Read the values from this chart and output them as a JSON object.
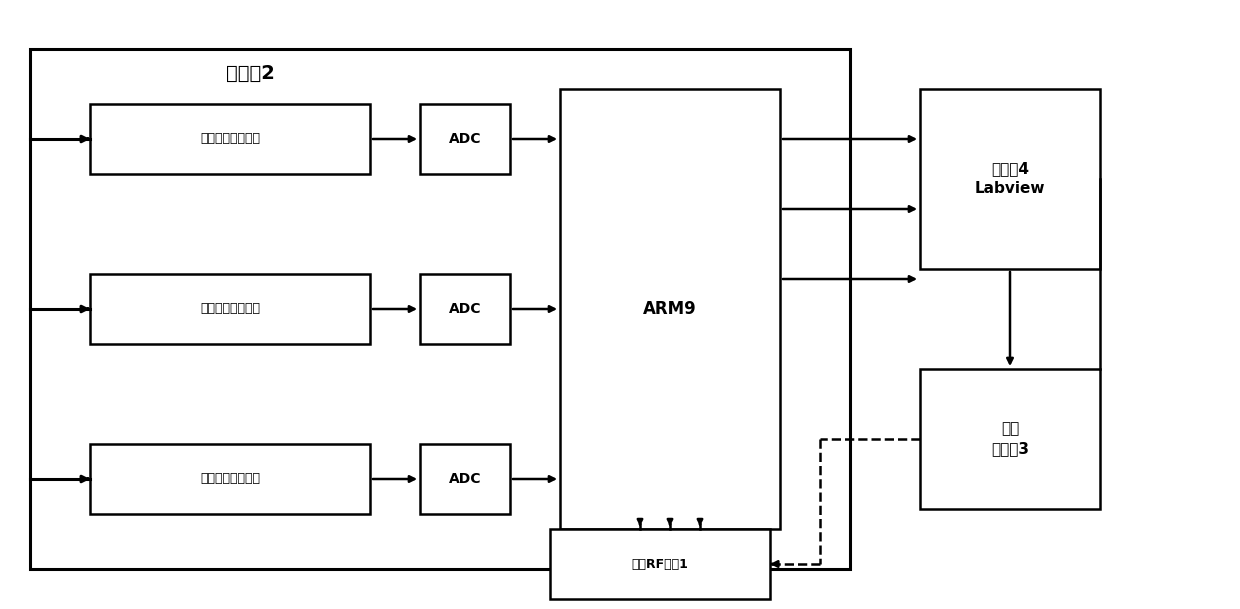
{
  "title": "",
  "background_color": "#ffffff",
  "controller2_label": "控制器2",
  "arm9_label": "ARM9",
  "upper_machine_label": "上位机4\nLabview",
  "switch_controller_label": "开关\n控制器3",
  "coax_rf_label": "同轴RF开关1",
  "row1_probe_label": "输入功率探头模块",
  "row2_probe_label": "输出功率探头模块",
  "row3_probe_label": "反射功率探头模块",
  "adc_label": "ADC",
  "fig_width": 12.4,
  "fig_height": 6.09,
  "dpi": 100
}
